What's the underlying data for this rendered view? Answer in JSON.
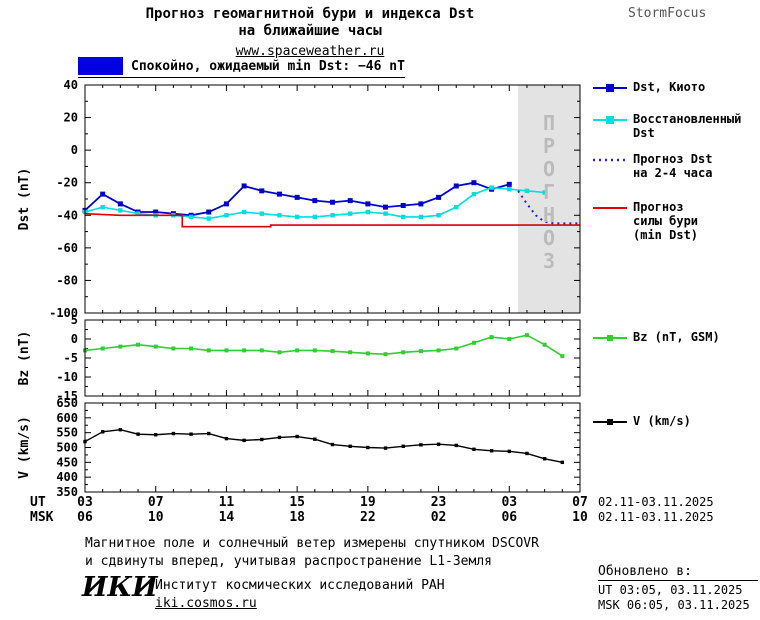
{
  "header": {
    "title_line1": "Прогноз геомагнитной бури и индекса Dst",
    "title_line2": "на ближайшие часы",
    "site_link": "www.spaceweather.ru",
    "brand": "StormFocus",
    "status_text": "Спокойно, ожидаемый min Dst: −46 nT",
    "min_dst_nt": -46,
    "banner_color": "#0000e0"
  },
  "forecast_overlay": {
    "label": "ПРОГНОЗ",
    "start_hour": 24.5,
    "fill": "#e3e3e3",
    "text_color": "#bbbbbb"
  },
  "axes": {
    "ut_label": "UT",
    "msk_label": "MSK",
    "x_ticks_ut": [
      "03",
      "07",
      "11",
      "15",
      "19",
      "23",
      "03",
      "07"
    ],
    "x_ticks_msk": [
      "06",
      "10",
      "14",
      "18",
      "22",
      "02",
      "06",
      "10"
    ],
    "date_range_ut": "02.11-03.11.2025",
    "date_range_msk": "02.11-03.11.2025"
  },
  "legend": {
    "dst_kyoto": "Dst, Киото",
    "restored": "Восстановленный\nDst",
    "forecast": "Прогноз Dst\nна 2-4 часа",
    "storm_power": "Прогноз\nсилы бури\n(min Dst)",
    "bz": "Bz (nT, GSM)",
    "v": "V (km/s)"
  },
  "chart_data": [
    {
      "type": "line",
      "ylabel": "Dst (nT)",
      "ylim": [
        -100,
        40
      ],
      "yticks": [
        40,
        20,
        0,
        -20,
        -40,
        -60,
        -80,
        -100
      ],
      "xlim": [
        0,
        28
      ],
      "series": [
        {
          "name": "Dst, Киото",
          "color": "#0000cd",
          "marker": "square",
          "msize": 5,
          "width": 1.8,
          "x": [
            0,
            1,
            2,
            3,
            4,
            5,
            6,
            7,
            8,
            9,
            10,
            11,
            12,
            13,
            14,
            15,
            16,
            17,
            18,
            19,
            20,
            21,
            22,
            23,
            24
          ],
          "y": [
            -37,
            -27,
            -33,
            -38,
            -38,
            -39,
            -40,
            -38,
            -33,
            -22,
            -25,
            -27,
            -29,
            -31,
            -32,
            -31,
            -33,
            -35,
            -34,
            -33,
            -29,
            -22,
            -20,
            -24,
            -21
          ]
        },
        {
          "name": "Восстановленный Dst",
          "color": "#00dede",
          "marker": "square",
          "msize": 4.4,
          "width": 1.6,
          "x": [
            0,
            1,
            2,
            3,
            4,
            5,
            6,
            7,
            8,
            9,
            10,
            11,
            12,
            13,
            14,
            15,
            16,
            17,
            18,
            19,
            20,
            21,
            22,
            23,
            24,
            25,
            26
          ],
          "y": [
            -38,
            -35,
            -37,
            -39,
            -40,
            -40,
            -41,
            -42,
            -40,
            -38,
            -39,
            -40,
            -41,
            -41,
            -40,
            -39,
            -38,
            -39,
            -41,
            -41,
            -40,
            -35,
            -27,
            -23,
            -24,
            -25,
            -26
          ]
        },
        {
          "name": "Прогноз Dst на 2-4 часа",
          "color": "#2222cc",
          "dash": "2,4",
          "width": 2,
          "x": [
            24.5,
            25,
            25.5,
            26,
            26.5,
            27,
            27.5,
            28
          ],
          "y": [
            -25,
            -33,
            -40,
            -44,
            -45,
            -45,
            -45,
            -45
          ]
        },
        {
          "name": "Прогноз силы бури (min Dst)",
          "color": "#dd0000",
          "width": 1.6,
          "x": [
            0,
            2,
            5.5,
            5.5,
            10.5,
            10.5,
            28
          ],
          "y": [
            -39,
            -40,
            -40,
            -47,
            -47,
            -46,
            -46
          ]
        }
      ]
    },
    {
      "type": "line",
      "ylabel": "Bz (nT)",
      "ylim": [
        -15,
        5
      ],
      "yticks": [
        5,
        0,
        -5,
        -10,
        -15
      ],
      "xlim": [
        0,
        28
      ],
      "series": [
        {
          "name": "Bz (nT, GSM)",
          "color": "#33cc33",
          "marker": "square",
          "msize": 4,
          "width": 1.6,
          "x": [
            0,
            1,
            2,
            3,
            4,
            5,
            6,
            7,
            8,
            9,
            10,
            11,
            12,
            13,
            14,
            15,
            16,
            17,
            18,
            19,
            20,
            21,
            22,
            23,
            24,
            25,
            26,
            27
          ],
          "y": [
            -3,
            -2.5,
            -2,
            -1.5,
            -2,
            -2.5,
            -2.5,
            -3,
            -3,
            -3,
            -3,
            -3.5,
            -3,
            -3,
            -3.2,
            -3.5,
            -3.8,
            -4,
            -3.5,
            -3.2,
            -3,
            -2.5,
            -1,
            0.5,
            0,
            1,
            -1.5,
            -4.5
          ]
        }
      ]
    },
    {
      "type": "line",
      "ylabel": "V (km/s)",
      "ylim": [
        350,
        650
      ],
      "yticks": [
        650,
        600,
        550,
        500,
        450,
        400,
        350
      ],
      "xlim": [
        0,
        28
      ],
      "series": [
        {
          "name": "V (km/s)",
          "color": "#000000",
          "marker": "square",
          "msize": 3.4,
          "width": 1.4,
          "x": [
            0,
            1,
            2,
            3,
            4,
            5,
            6,
            7,
            8,
            9,
            10,
            11,
            12,
            13,
            14,
            15,
            16,
            17,
            18,
            19,
            20,
            21,
            22,
            23,
            24,
            25,
            26,
            27
          ],
          "y": [
            520,
            553,
            560,
            545,
            543,
            547,
            545,
            547,
            530,
            524,
            527,
            534,
            537,
            528,
            510,
            504,
            500,
            498,
            504,
            509,
            511,
            507,
            494,
            489,
            487,
            480,
            462,
            450
          ]
        }
      ]
    }
  ],
  "footer": {
    "note_line1": "Магнитное поле и солнечный ветер измерены спутником DSCOVR",
    "note_line2": "и сдвинуты вперед, учитывая распространение L1-Земля",
    "org_logo": "ИКИ",
    "org_name": "Институт космических исследований РАН",
    "org_site": "iki.cosmos.ru"
  },
  "updated": {
    "heading": "Обновлено в:",
    "ut": "UT  03:05, 03.11.2025",
    "msk": "MSK 06:05, 03.11.2025"
  }
}
